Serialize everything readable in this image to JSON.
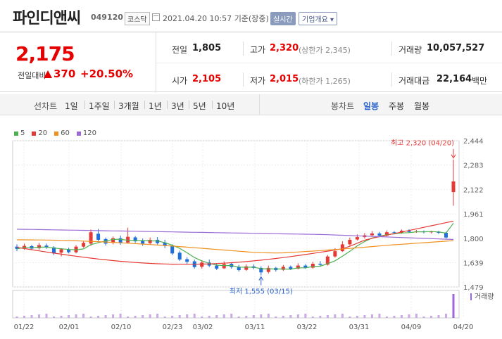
{
  "header": {
    "name": "파인디앤씨",
    "code": "049120",
    "market": "코스닥",
    "datetime": "2021.04.20 10:57",
    "basis": "기준(장중)",
    "realtime_label": "실시간",
    "company_label": "기업개요 ▾"
  },
  "quote": {
    "price": "2,175",
    "change_label": "전일대비",
    "change_value": "370",
    "change_pct": "+20.50%",
    "prev_label": "전일",
    "prev_value": "1,805",
    "high_label": "고가",
    "high_value": "2,320",
    "upper_limit": "(상한가 2,345)",
    "volume_label": "거래량",
    "volume_value": "10,057,527",
    "open_label": "시가",
    "open_value": "2,105",
    "low_label": "저가",
    "low_value": "2,015",
    "lower_limit": "(하한가 1,265)",
    "amount_label": "거래대금",
    "amount_value": "22,164",
    "amount_unit": "백만"
  },
  "periodbar": {
    "line_label": "선차트",
    "line_items": [
      "1일",
      "1주일",
      "3개월",
      "1년",
      "3년",
      "5년",
      "10년"
    ],
    "candle_label": "봉차트",
    "candle_items": [
      "일봉",
      "주봉",
      "월봉"
    ],
    "candle_active": "일봉"
  },
  "chart_data": {
    "type": "candlestick",
    "legend": [
      "5",
      "20",
      "60",
      "120"
    ],
    "legend_colors": [
      "#4caf50",
      "#e53935",
      "#f0901e",
      "#9c6ad6"
    ],
    "yticks": [
      "2,444",
      "2,283",
      "2,122",
      "1,961",
      "1,800",
      "1,639",
      "1,479"
    ],
    "ylim": [
      1479,
      2444
    ],
    "xticks": [
      "01/22",
      "02/01",
      "02/10",
      "02/23",
      "03/02",
      "03/11",
      "03/22",
      "03/31",
      "04/09",
      "04/20"
    ],
    "high_annotation": "최고 2,320 (04/20)",
    "low_annotation": "최저 1,555 (03/15)",
    "volume_label": "거래량",
    "up_color": "#e53935",
    "down_color": "#1e6fd9"
  }
}
